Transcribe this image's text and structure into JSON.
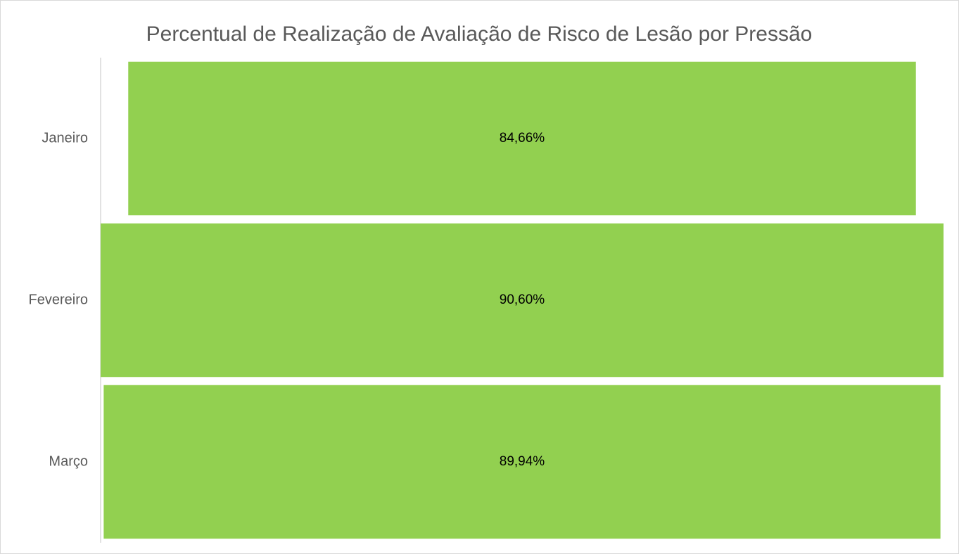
{
  "chart_data": {
    "type": "funnel",
    "title": "Percentual de Realização de Avaliação de Risco de Lesão por Pressão",
    "categories": [
      "Janeiro",
      "Fevereiro",
      "Março"
    ],
    "values": [
      84.66,
      90.6,
      89.94
    ],
    "value_labels": [
      "84,66%",
      "90,60%",
      "89,94%"
    ],
    "color": "#92d050"
  }
}
